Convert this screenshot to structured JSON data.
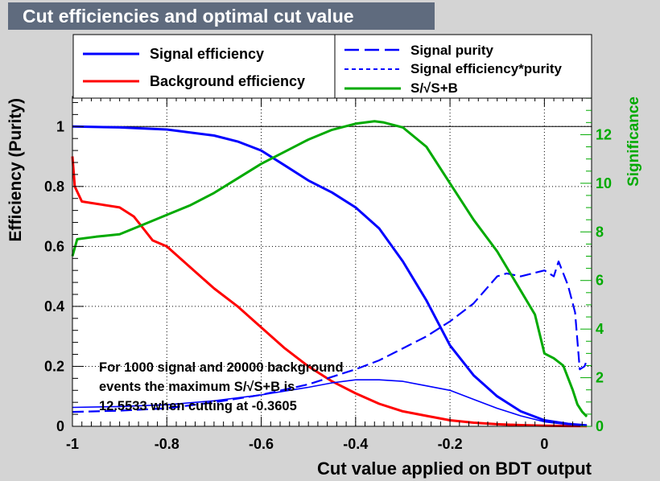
{
  "page_title": "Cut efficiencies and optimal cut value",
  "chart_data": {
    "type": "line",
    "title": "Cut efficiencies and optimal cut value",
    "xlabel": "Cut value applied on BDT output",
    "ylabel": "Efficiency (Purity)",
    "y2label": "Significance",
    "xlim": [
      -1,
      0.1
    ],
    "ylim": [
      0,
      1.1
    ],
    "y2lim": [
      0,
      13.57
    ],
    "x_ticks": [
      "-1",
      "-0.8",
      "-0.6",
      "-0.4",
      "-0.2",
      "0"
    ],
    "x_tick_values": [
      -1,
      -0.8,
      -0.6,
      -0.4,
      -0.2,
      0
    ],
    "y_ticks": [
      "0",
      "0.2",
      "0.4",
      "0.6",
      "0.8",
      "1"
    ],
    "y_tick_values": [
      0,
      0.2,
      0.4,
      0.6,
      0.8,
      1
    ],
    "y2_ticks": [
      "0",
      "2",
      "4",
      "6",
      "8",
      "10",
      "12"
    ],
    "y2_tick_values": [
      0,
      2,
      4,
      6,
      8,
      10,
      12
    ],
    "grid": true,
    "legend_left": [
      "Signal efficiency",
      "Background efficiency"
    ],
    "legend_right": [
      "Signal purity",
      "Signal efficiency*purity",
      "S/√S+B"
    ],
    "annotation": [
      "For 1000 signal and 20000 background",
      "events the maximum S/√S+B is",
      "12.5533 when cutting at -0.3605"
    ],
    "colors": {
      "signal": "#0000ff",
      "background": "#ff0000",
      "significance": "#00aa00",
      "frame": "#000000"
    },
    "series": [
      {
        "name": "Signal efficiency",
        "axis": "left",
        "style": "solid",
        "x": [
          -1,
          -0.9,
          -0.8,
          -0.7,
          -0.65,
          -0.6,
          -0.55,
          -0.5,
          -0.45,
          -0.4,
          -0.35,
          -0.3,
          -0.25,
          -0.2,
          -0.15,
          -0.1,
          -0.05,
          0,
          0.05,
          0.09
        ],
        "y": [
          1.0,
          0.997,
          0.99,
          0.97,
          0.95,
          0.92,
          0.87,
          0.82,
          0.78,
          0.73,
          0.66,
          0.55,
          0.42,
          0.27,
          0.17,
          0.1,
          0.05,
          0.02,
          0.008,
          0.003
        ]
      },
      {
        "name": "Background efficiency",
        "axis": "left",
        "style": "solid",
        "x": [
          -1,
          -0.995,
          -0.98,
          -0.9,
          -0.87,
          -0.85,
          -0.83,
          -0.8,
          -0.75,
          -0.7,
          -0.65,
          -0.6,
          -0.55,
          -0.5,
          -0.45,
          -0.4,
          -0.35,
          -0.3,
          -0.25,
          -0.2,
          -0.15,
          -0.1,
          -0.05,
          0,
          0.05,
          0.09
        ],
        "y": [
          0.9,
          0.8,
          0.75,
          0.73,
          0.7,
          0.66,
          0.62,
          0.6,
          0.53,
          0.46,
          0.4,
          0.33,
          0.26,
          0.2,
          0.15,
          0.11,
          0.075,
          0.05,
          0.035,
          0.02,
          0.012,
          0.007,
          0.004,
          0.002,
          0.001,
          0.0005
        ]
      },
      {
        "name": "Signal purity",
        "axis": "left",
        "style": "dashed",
        "x": [
          -1,
          -0.9,
          -0.8,
          -0.7,
          -0.6,
          -0.5,
          -0.4,
          -0.35,
          -0.3,
          -0.25,
          -0.2,
          -0.15,
          -0.1,
          -0.08,
          -0.05,
          0,
          0.02,
          0.03,
          0.05,
          0.065,
          0.075,
          0.085,
          0.09
        ],
        "y": [
          0.048,
          0.052,
          0.06,
          0.08,
          0.105,
          0.14,
          0.19,
          0.22,
          0.26,
          0.3,
          0.35,
          0.41,
          0.5,
          0.51,
          0.5,
          0.52,
          0.5,
          0.55,
          0.47,
          0.38,
          0.19,
          0.2,
          0.22
        ]
      },
      {
        "name": "Signal efficiency*purity",
        "axis": "left",
        "style": "dotted",
        "x": [
          -1,
          -0.9,
          -0.8,
          -0.7,
          -0.6,
          -0.5,
          -0.45,
          -0.4,
          -0.35,
          -0.3,
          -0.25,
          -0.2,
          -0.15,
          -0.1,
          -0.05,
          0,
          0.05,
          0.09
        ],
        "y": [
          0.063,
          0.066,
          0.072,
          0.085,
          0.105,
          0.13,
          0.145,
          0.155,
          0.155,
          0.15,
          0.135,
          0.12,
          0.09,
          0.06,
          0.035,
          0.015,
          0.006,
          0.003
        ]
      },
      {
        "name": "S/√S+B",
        "axis": "right",
        "style": "solid",
        "x": [
          -1,
          -0.99,
          -0.95,
          -0.9,
          -0.85,
          -0.8,
          -0.75,
          -0.7,
          -0.65,
          -0.6,
          -0.55,
          -0.5,
          -0.45,
          -0.4,
          -0.36,
          -0.34,
          -0.3,
          -0.25,
          -0.2,
          -0.15,
          -0.1,
          -0.06,
          -0.02,
          0.0,
          0.02,
          0.04,
          0.06,
          0.07,
          0.08,
          0.09
        ],
        "y": [
          7.0,
          7.7,
          7.8,
          7.9,
          8.3,
          8.7,
          9.1,
          9.6,
          10.2,
          10.8,
          11.3,
          11.8,
          12.2,
          12.45,
          12.55,
          12.5,
          12.3,
          11.5,
          10.0,
          8.5,
          7.2,
          5.9,
          4.6,
          3.0,
          2.8,
          2.5,
          1.5,
          0.9,
          0.6,
          0.4
        ]
      }
    ]
  }
}
